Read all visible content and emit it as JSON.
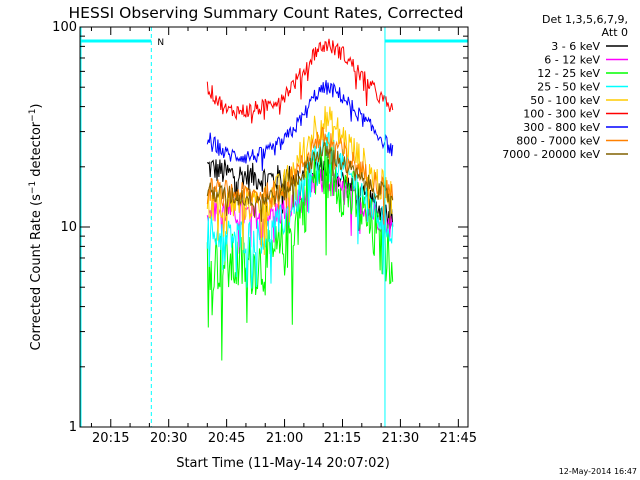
{
  "chart_data": {
    "type": "line",
    "title": "HESSI Observing Summary Count Rates, Corrected",
    "ylabel": "Corrected Count Rate (s⁻¹ detector⁻¹)",
    "xlabel": "Start Time (11-May-14 20:07:02)",
    "y_scale": "log",
    "ylim": [
      1,
      100
    ],
    "xlim": [
      "20:07:02",
      "21:47:30"
    ],
    "x_ticks": [
      "20:15",
      "20:30",
      "20:45",
      "21:00",
      "21:15",
      "21:30",
      "21:45"
    ],
    "y_ticks": [
      "1",
      "10",
      "100"
    ],
    "legend_header": [
      "Det 1,3,5,6,7,9,",
      "Att 0"
    ],
    "legend_position": "right",
    "series": [
      {
        "name": "3 - 6 keV",
        "color": "#000000",
        "noise": 0.07,
        "x": [
          "20:40",
          "20:45",
          "20:50",
          "20:55",
          "21:00",
          "21:05",
          "21:08",
          "21:11",
          "21:15",
          "21:20",
          "21:25",
          "21:28"
        ],
        "y": [
          20,
          18.5,
          18,
          17.5,
          17.5,
          18,
          19.5,
          20,
          17,
          14,
          12,
          11
        ]
      },
      {
        "name": "6 - 12 keV",
        "color": "#ff00ff",
        "noise": 0.07,
        "x": [
          "20:40",
          "20:45",
          "20:50",
          "20:55",
          "21:00",
          "21:05",
          "21:08",
          "21:11",
          "21:15",
          "21:20",
          "21:25",
          "21:28"
        ],
        "y": [
          12.5,
          12,
          11.5,
          11.5,
          12,
          14,
          16.5,
          17,
          15,
          13,
          11,
          10
        ]
      },
      {
        "name": "12 - 25 keV",
        "color": "#00ff00",
        "noise": 0.16,
        "x": [
          "20:40",
          "20:45",
          "20:50",
          "20:55",
          "21:00",
          "21:05",
          "21:08",
          "21:11",
          "21:15",
          "21:20",
          "21:25",
          "21:28"
        ],
        "y": [
          7,
          6.5,
          6.5,
          6.5,
          8,
          13,
          18,
          20,
          16,
          12,
          8,
          7
        ]
      },
      {
        "name": "25 - 50 keV",
        "color": "#00ffff",
        "noise": 0.09,
        "x": [
          "20:40",
          "20:45",
          "20:50",
          "20:55",
          "21:00",
          "21:05",
          "21:08",
          "21:11",
          "21:15",
          "21:20",
          "21:25",
          "21:28"
        ],
        "y": [
          9.5,
          9,
          9,
          9,
          11,
          16,
          23,
          25,
          20,
          15,
          11,
          9.5
        ]
      },
      {
        "name": "50 - 100 keV",
        "color": "#ffcc00",
        "noise": 0.09,
        "x": [
          "20:40",
          "20:45",
          "20:50",
          "20:55",
          "21:00",
          "21:05",
          "21:08",
          "21:11",
          "21:15",
          "21:20",
          "21:25",
          "21:28"
        ],
        "y": [
          13,
          13,
          13,
          13.5,
          16,
          24,
          32,
          34,
          28,
          21,
          16,
          14
        ]
      },
      {
        "name": "100 - 300 keV",
        "color": "#ff0000",
        "noise": 0.04,
        "x": [
          "20:40",
          "20:45",
          "20:50",
          "20:55",
          "21:00",
          "21:05",
          "21:08",
          "21:11",
          "21:15",
          "21:20",
          "21:25",
          "21:28"
        ],
        "y": [
          50,
          38,
          38,
          40,
          46,
          60,
          76,
          82,
          74,
          57,
          44,
          38
        ]
      },
      {
        "name": "300 - 800 keV",
        "color": "#0000ff",
        "noise": 0.04,
        "x": [
          "20:40",
          "20:45",
          "20:50",
          "20:55",
          "21:00",
          "21:05",
          "21:08",
          "21:11",
          "21:15",
          "21:20",
          "21:25",
          "21:28"
        ],
        "y": [
          28,
          23,
          22.5,
          23,
          27,
          36,
          46,
          50,
          45,
          35,
          28,
          24
        ]
      },
      {
        "name": "800 - 7000 keV",
        "color": "#ff8000",
        "noise": 0.06,
        "x": [
          "20:40",
          "20:45",
          "20:50",
          "20:55",
          "21:00",
          "21:05",
          "21:08",
          "21:11",
          "21:15",
          "21:20",
          "21:25",
          "21:28"
        ],
        "y": [
          15.5,
          15,
          14.5,
          14.5,
          16,
          21,
          27,
          28,
          24,
          19,
          16,
          15
        ]
      },
      {
        "name": "7000 - 20000 keV",
        "color": "#806000",
        "noise": 0.05,
        "x": [
          "20:40",
          "20:45",
          "20:50",
          "20:55",
          "21:00",
          "21:05",
          "21:08",
          "21:11",
          "21:15",
          "21:20",
          "21:25",
          "21:28"
        ],
        "y": [
          15,
          14.5,
          14,
          14,
          15,
          19,
          23,
          24,
          21,
          17,
          15,
          14
        ]
      }
    ],
    "night_intervals": [
      [
        "20:07:02",
        "20:25:30"
      ],
      [
        "21:26:00",
        "21:47:30"
      ]
    ],
    "night_color": "#00ffff",
    "night_marker": "N",
    "grid": false
  },
  "footer": {
    "timestamp": "12-May-2014 16:47"
  }
}
